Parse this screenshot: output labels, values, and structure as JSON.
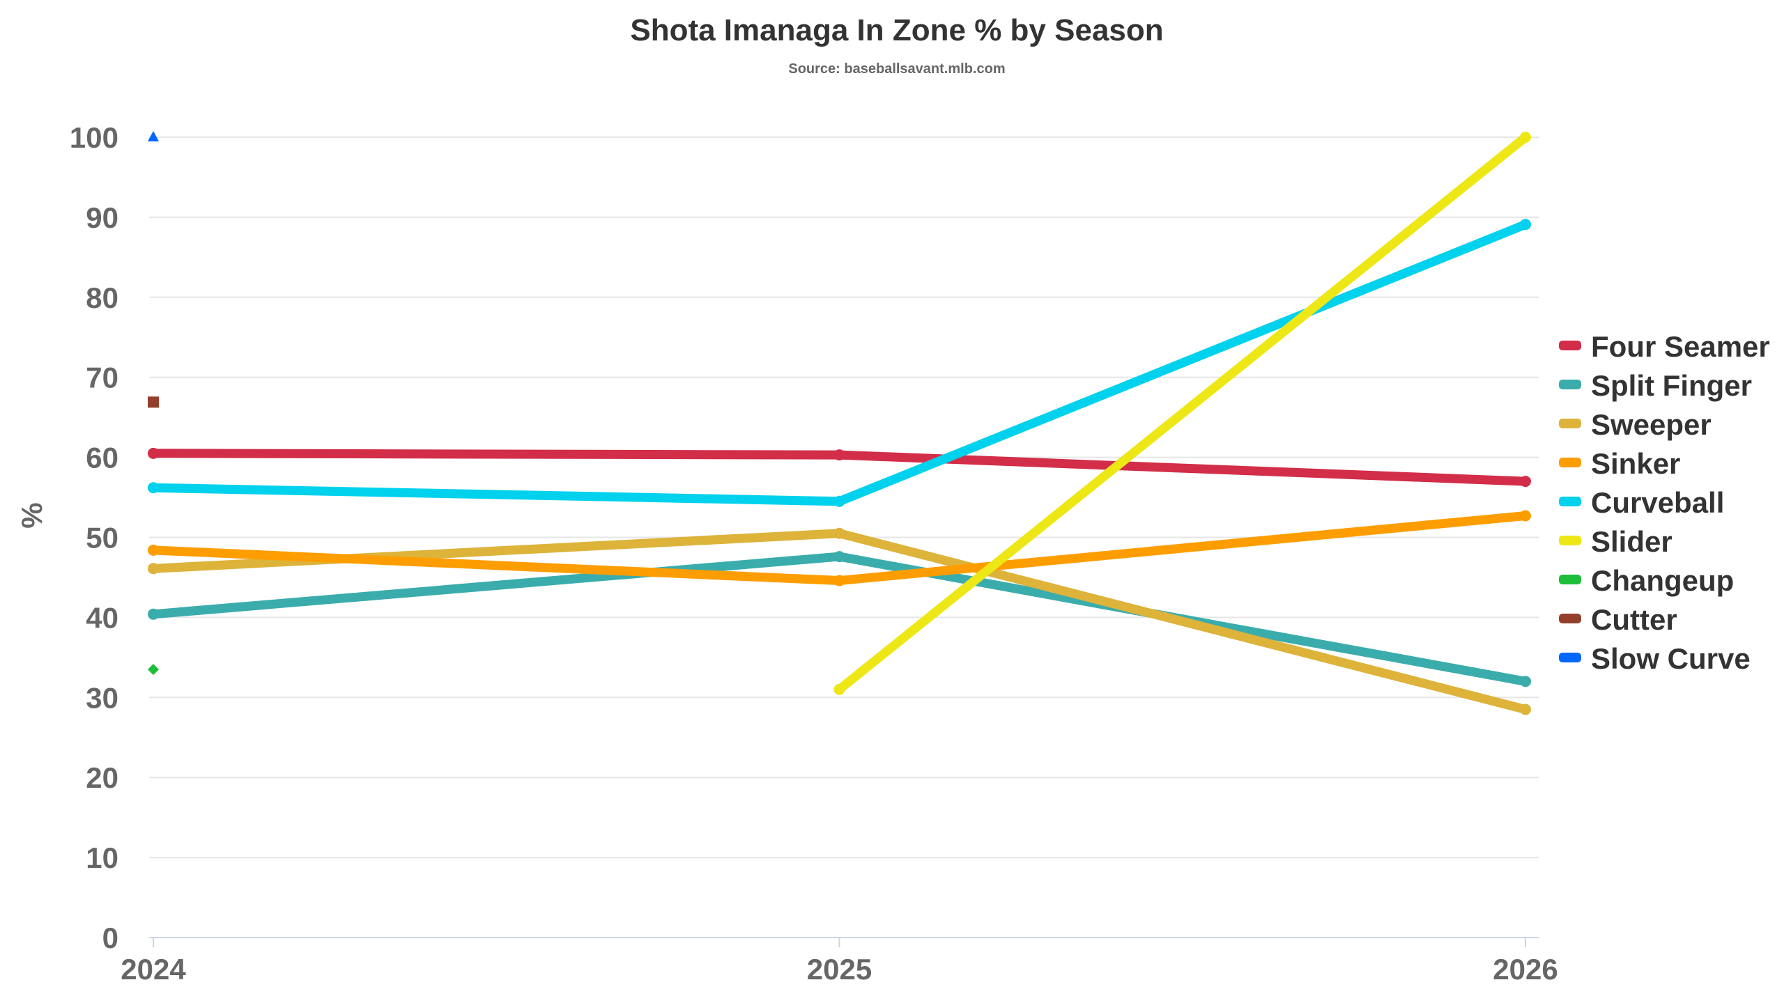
{
  "chart_data": {
    "type": "line",
    "title": "Shota Imanaga In Zone % by Season",
    "subtitle": "Source: baseballsavant.mlb.com",
    "xlabel": "",
    "ylabel": "%",
    "x": [
      "2024",
      "2025",
      "2026"
    ],
    "ylim": [
      0,
      100
    ],
    "yticks": [
      "0",
      "10",
      "20",
      "30",
      "40",
      "50",
      "60",
      "70",
      "80",
      "90",
      "100"
    ],
    "grid": true,
    "legend": "right",
    "series": [
      {
        "name": "Four Seamer",
        "color": "#d22d49",
        "values": [
          60.5,
          60.3,
          57.0
        ]
      },
      {
        "name": "Split Finger",
        "color": "#3bacac",
        "values": [
          40.4,
          47.6,
          32.0
        ]
      },
      {
        "name": "Sweeper",
        "color": "#ddb33a",
        "values": [
          46.1,
          50.5,
          28.5
        ]
      },
      {
        "name": "Sinker",
        "color": "#fe9d00",
        "values": [
          48.4,
          44.6,
          52.7
        ]
      },
      {
        "name": "Curveball",
        "color": "#00d1ed",
        "values": [
          56.2,
          54.5,
          89.1
        ]
      },
      {
        "name": "Slider",
        "color": "#eee716",
        "values": [
          null,
          31.0,
          100
        ]
      },
      {
        "name": "Changeup",
        "color": "#1dbe3a",
        "values": [
          33.5,
          null,
          null
        ],
        "marker": "diamond"
      },
      {
        "name": "Cutter",
        "color": "#933f2c",
        "values": [
          66.9,
          null,
          null
        ],
        "marker": "square"
      },
      {
        "name": "Slow Curve",
        "color": "#0068ff",
        "values": [
          100,
          null,
          null
        ],
        "marker": "triangle"
      }
    ]
  }
}
